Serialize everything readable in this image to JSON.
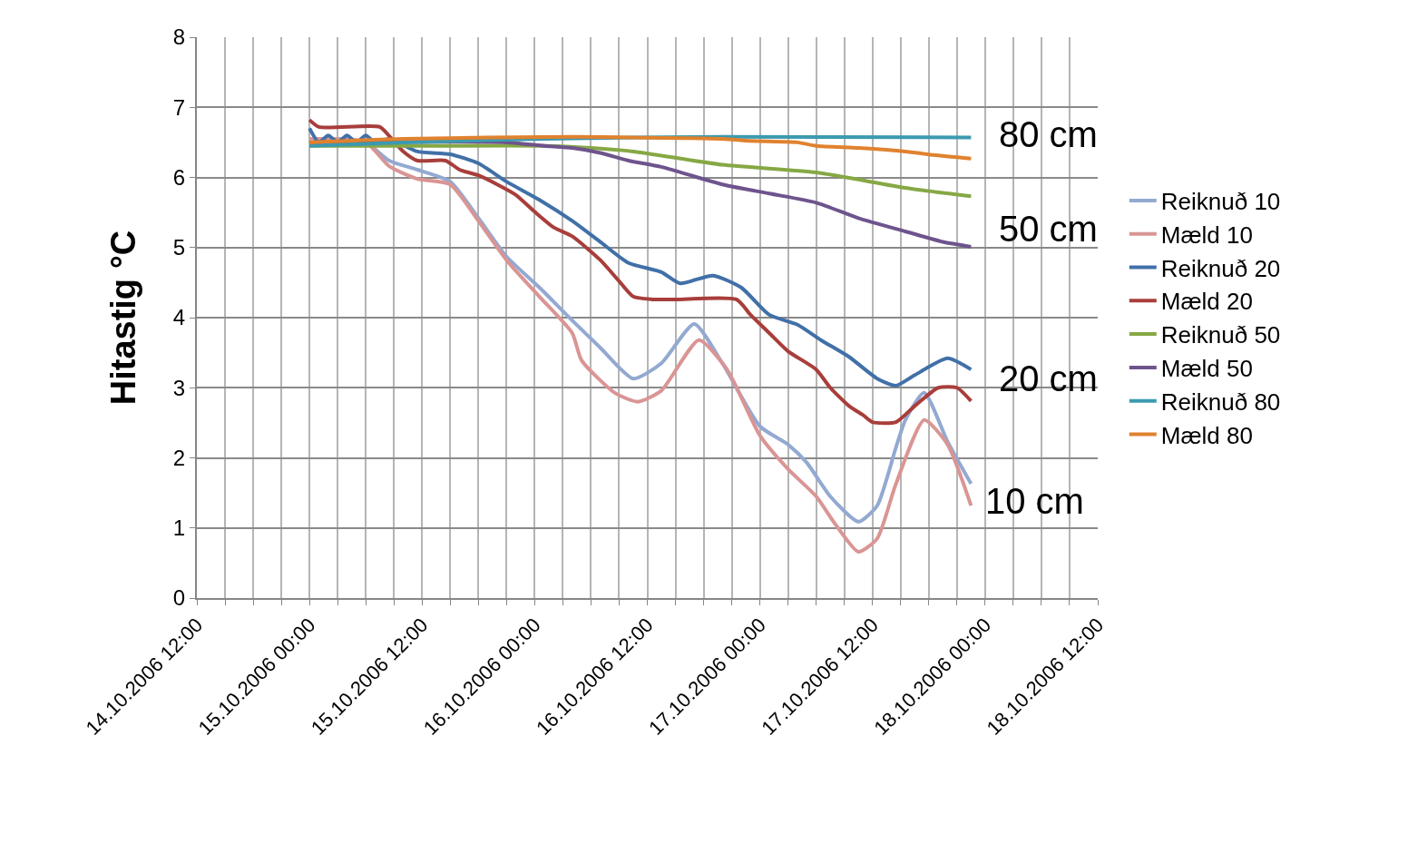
{
  "chart_data": {
    "type": "line",
    "ylabel": "Hitastig °C",
    "xlim": [
      "2006-10-14T12:00",
      "2006-10-18T12:00"
    ],
    "xticks": [
      {
        "value": "2006-10-14T12:00",
        "label": "14.10.2006 12:00"
      },
      {
        "value": "2006-10-14T15:00",
        "label": null
      },
      {
        "value": "2006-10-14T18:00",
        "label": null
      },
      {
        "value": "2006-10-14T21:00",
        "label": null
      },
      {
        "value": "2006-10-15T00:00",
        "label": "15.10.2006 00:00"
      },
      {
        "value": "2006-10-15T03:00",
        "label": null
      },
      {
        "value": "2006-10-15T06:00",
        "label": null
      },
      {
        "value": "2006-10-15T09:00",
        "label": null
      },
      {
        "value": "2006-10-15T12:00",
        "label": "15.10.2006 12:00"
      },
      {
        "value": "2006-10-15T15:00",
        "label": null
      },
      {
        "value": "2006-10-15T18:00",
        "label": null
      },
      {
        "value": "2006-10-15T21:00",
        "label": null
      },
      {
        "value": "2006-10-16T00:00",
        "label": "16.10.2006 00:00"
      },
      {
        "value": "2006-10-16T03:00",
        "label": null
      },
      {
        "value": "2006-10-16T06:00",
        "label": null
      },
      {
        "value": "2006-10-16T09:00",
        "label": null
      },
      {
        "value": "2006-10-16T12:00",
        "label": "16.10.2006 12:00"
      },
      {
        "value": "2006-10-16T15:00",
        "label": null
      },
      {
        "value": "2006-10-16T18:00",
        "label": null
      },
      {
        "value": "2006-10-16T21:00",
        "label": null
      },
      {
        "value": "2006-10-17T00:00",
        "label": "17.10.2006 00:00"
      },
      {
        "value": "2006-10-17T03:00",
        "label": null
      },
      {
        "value": "2006-10-17T06:00",
        "label": null
      },
      {
        "value": "2006-10-17T09:00",
        "label": null
      },
      {
        "value": "2006-10-17T12:00",
        "label": "17.10.2006 12:00"
      },
      {
        "value": "2006-10-17T15:00",
        "label": null
      },
      {
        "value": "2006-10-17T18:00",
        "label": null
      },
      {
        "value": "2006-10-17T21:00",
        "label": null
      },
      {
        "value": "2006-10-18T00:00",
        "label": "18.10.2006 00:00"
      },
      {
        "value": "2006-10-18T03:00",
        "label": null
      },
      {
        "value": "2006-10-18T06:00",
        "label": null
      },
      {
        "value": "2006-10-18T09:00",
        "label": null
      },
      {
        "value": "2006-10-18T12:00",
        "label": "18.10.2006 12:00"
      }
    ],
    "ylim": [
      0,
      8
    ],
    "yticks": [
      0,
      1,
      2,
      3,
      4,
      5,
      6,
      7,
      8
    ],
    "grid": true,
    "legend": "right",
    "marker": "none",
    "line_style": "solid",
    "series": [
      {
        "name": "Reiknuð 10",
        "color": "#93a9d1",
        "x": [
          "2006-10-15T00:00",
          "2006-10-15T03:00",
          "2006-10-15T06:00",
          "2006-10-15T08:30",
          "2006-10-15T11:30",
          "2006-10-15T15:00",
          "2006-10-15T18:00",
          "2006-10-15T21:00",
          "2006-10-16T00:30",
          "2006-10-16T04:00",
          "2006-10-16T07:00",
          "2006-10-16T10:30",
          "2006-10-16T13:30",
          "2006-10-16T17:00",
          "2006-10-16T20:00",
          "2006-10-17T00:00",
          "2006-10-17T03:00",
          "2006-10-17T05:00",
          "2006-10-17T07:30",
          "2006-10-17T10:30",
          "2006-10-17T12:30",
          "2006-10-17T14:30",
          "2006-10-17T15:30",
          "2006-10-17T17:30",
          "2006-10-17T20:00",
          "2006-10-17T22:30"
        ],
        "values": [
          6.5,
          6.55,
          6.5,
          6.24,
          6.11,
          5.94,
          5.42,
          4.87,
          4.43,
          3.96,
          3.57,
          3.13,
          3.35,
          3.91,
          3.35,
          2.45,
          2.19,
          1.93,
          1.45,
          1.09,
          1.32,
          2.15,
          2.54,
          2.93,
          2.23,
          1.63
        ]
      },
      {
        "name": "Mæld 10",
        "color": "#d99594",
        "x": [
          "2006-10-15T00:00",
          "2006-10-15T06:00",
          "2006-10-15T08:30",
          "2006-10-15T11:30",
          "2006-10-15T15:00",
          "2006-10-15T18:00",
          "2006-10-15T21:00",
          "2006-10-16T00:30",
          "2006-10-16T04:00",
          "2006-10-16T05:00",
          "2006-10-16T08:30",
          "2006-10-16T11:00",
          "2006-10-16T13:30",
          "2006-10-16T17:30",
          "2006-10-16T20:30",
          "2006-10-17T00:00",
          "2006-10-17T03:00",
          "2006-10-17T06:00",
          "2006-10-17T08:00",
          "2006-10-17T10:30",
          "2006-10-17T12:30",
          "2006-10-17T14:30",
          "2006-10-17T17:30",
          "2006-10-17T20:00",
          "2006-10-17T22:30"
        ],
        "values": [
          6.55,
          6.5,
          6.16,
          5.98,
          5.9,
          5.38,
          4.82,
          4.3,
          3.78,
          3.39,
          2.93,
          2.8,
          2.96,
          3.68,
          3.26,
          2.32,
          1.84,
          1.45,
          1.06,
          0.66,
          0.85,
          1.63,
          2.54,
          2.19,
          1.32
        ]
      },
      {
        "name": "Reiknuð 20",
        "color": "#4170a8",
        "x": [
          "2006-10-15T00:00",
          "2006-10-15T01:00",
          "2006-10-15T02:00",
          "2006-10-15T03:00",
          "2006-10-15T04:00",
          "2006-10-15T05:00",
          "2006-10-15T06:00",
          "2006-10-15T07:00",
          "2006-10-15T08:30",
          "2006-10-15T11:30",
          "2006-10-15T15:00",
          "2006-10-15T18:00",
          "2006-10-15T21:00",
          "2006-10-16T00:30",
          "2006-10-16T04:00",
          "2006-10-16T07:00",
          "2006-10-16T10:00",
          "2006-10-16T13:30",
          "2006-10-16T15:30",
          "2006-10-16T19:00",
          "2006-10-16T22:00",
          "2006-10-17T01:00",
          "2006-10-17T04:00",
          "2006-10-17T06:30",
          "2006-10-17T09:30",
          "2006-10-17T12:30",
          "2006-10-17T14:30",
          "2006-10-17T16:30",
          "2006-10-17T20:00",
          "2006-10-17T22:30"
        ],
        "values": [
          6.7,
          6.5,
          6.6,
          6.5,
          6.6,
          6.5,
          6.6,
          6.5,
          6.55,
          6.37,
          6.33,
          6.2,
          5.94,
          5.68,
          5.38,
          5.08,
          4.78,
          4.65,
          4.49,
          4.6,
          4.43,
          4.04,
          3.9,
          3.68,
          3.44,
          3.13,
          3.03,
          3.18,
          3.42,
          3.26
        ]
      },
      {
        "name": "Mæld 20",
        "color": "#a83e3b",
        "x": [
          "2006-10-15T00:00",
          "2006-10-15T01:00",
          "2006-10-15T07:30",
          "2006-10-15T08:30",
          "2006-10-15T10:00",
          "2006-10-15T11:30",
          "2006-10-15T14:30",
          "2006-10-15T16:00",
          "2006-10-15T18:00",
          "2006-10-15T20:00",
          "2006-10-15T22:00",
          "2006-10-16T00:00",
          "2006-10-16T02:00",
          "2006-10-16T04:00",
          "2006-10-16T07:00",
          "2006-10-16T09:00",
          "2006-10-16T10:30",
          "2006-10-16T12:30",
          "2006-10-16T15:00",
          "2006-10-16T21:30",
          "2006-10-16T23:00",
          "2006-10-17T01:00",
          "2006-10-17T03:00",
          "2006-10-17T06:00",
          "2006-10-17T07:30",
          "2006-10-17T09:30",
          "2006-10-17T11:00",
          "2006-10-17T12:00",
          "2006-10-17T14:30",
          "2006-10-17T16:30",
          "2006-10-17T19:00",
          "2006-10-17T21:00",
          "2006-10-17T22:30"
        ],
        "values": [
          6.82,
          6.72,
          6.72,
          6.59,
          6.37,
          6.24,
          6.24,
          6.11,
          6.03,
          5.9,
          5.75,
          5.51,
          5.29,
          5.16,
          4.82,
          4.52,
          4.3,
          4.26,
          4.26,
          4.26,
          4.04,
          3.78,
          3.52,
          3.26,
          3.0,
          2.74,
          2.61,
          2.51,
          2.51,
          2.74,
          3.0,
          3.0,
          2.81
        ]
      },
      {
        "name": "Reiknuð 50",
        "color": "#86a844",
        "x": [
          "2006-10-15T00:00",
          "2006-10-15T12:00",
          "2006-10-16T01:00",
          "2006-10-16T06:00",
          "2006-10-16T10:30",
          "2006-10-16T20:00",
          "2006-10-17T06:00",
          "2006-10-17T15:30",
          "2006-10-17T22:30"
        ],
        "values": [
          6.45,
          6.45,
          6.45,
          6.42,
          6.37,
          6.18,
          6.07,
          5.85,
          5.73
        ]
      },
      {
        "name": "Mæld 50",
        "color": "#6e548d",
        "x": [
          "2006-10-15T00:00",
          "2006-10-15T21:00",
          "2006-10-16T01:00",
          "2006-10-16T04:00",
          "2006-10-16T07:00",
          "2006-10-16T10:00",
          "2006-10-16T13:30",
          "2006-10-16T20:00",
          "2006-10-17T01:00",
          "2006-10-17T06:00",
          "2006-10-17T10:30",
          "2006-10-17T15:30",
          "2006-10-17T19:30",
          "2006-10-17T22:30"
        ],
        "values": [
          6.5,
          6.5,
          6.45,
          6.42,
          6.35,
          6.24,
          6.15,
          5.9,
          5.77,
          5.64,
          5.42,
          5.23,
          5.08,
          5.01
        ]
      },
      {
        "name": "Reiknuð 80",
        "color": "#3c9ab0",
        "x": [
          "2006-10-15T00:00",
          "2006-10-15T10:00",
          "2006-10-16T01:00",
          "2006-10-16T20:00",
          "2006-10-17T22:30"
        ],
        "values": [
          6.45,
          6.5,
          6.55,
          6.58,
          6.57
        ]
      },
      {
        "name": "Mæld 80",
        "color": "#e0822f",
        "x": [
          "2006-10-15T00:00",
          "2006-10-15T10:00",
          "2006-10-16T04:00",
          "2006-10-16T10:30",
          "2006-10-16T20:00",
          "2006-10-16T23:00",
          "2006-10-17T04:00",
          "2006-10-17T06:00",
          "2006-10-17T10:30",
          "2006-10-17T15:30",
          "2006-10-17T18:30",
          "2006-10-17T22:30"
        ],
        "values": [
          6.5,
          6.55,
          6.58,
          6.57,
          6.55,
          6.52,
          6.5,
          6.45,
          6.42,
          6.37,
          6.32,
          6.27
        ]
      }
    ],
    "annotations": [
      "80 cm",
      "50 cm",
      "20 cm",
      "10 cm"
    ]
  }
}
